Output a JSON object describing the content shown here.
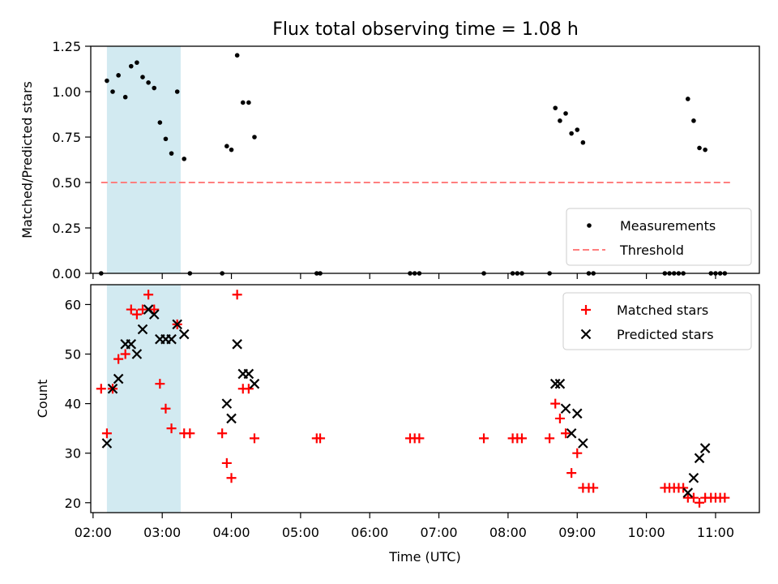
{
  "title": "Flux total observing time = 1.08 h",
  "chart_data": [
    {
      "type": "scatter",
      "ylabel": "Matched/Predicted stars",
      "xlabel": "",
      "xlim": [
        "01:58",
        "11:38"
      ],
      "ylim": [
        0,
        1.25
      ],
      "yticks": [
        0,
        0.25,
        0.5,
        0.75,
        1.0,
        1.25
      ],
      "ytick_labels": [
        "0.00",
        "0.25",
        "0.50",
        "0.75",
        "1.00",
        "1.25"
      ],
      "highlight_span": {
        "x": [
          "02:12",
          "03:16"
        ],
        "color": "#add8e6"
      },
      "legend_position": "lower right",
      "series": [
        {
          "name": "Measurements",
          "marker": "dot",
          "color": "#000000",
          "points": [
            [
              "02:07",
              0.0
            ],
            [
              "02:12",
              1.06
            ],
            [
              "02:17",
              1.0
            ],
            [
              "02:22",
              1.09
            ],
            [
              "02:28",
              0.97
            ],
            [
              "02:33",
              1.14
            ],
            [
              "02:38",
              1.16
            ],
            [
              "02:43",
              1.08
            ],
            [
              "02:48",
              1.05
            ],
            [
              "02:53",
              1.02
            ],
            [
              "02:58",
              0.83
            ],
            [
              "03:03",
              0.74
            ],
            [
              "03:08",
              0.66
            ],
            [
              "03:13",
              1.0
            ],
            [
              "03:19",
              0.63
            ],
            [
              "03:24",
              0.0
            ],
            [
              "03:52",
              0.0
            ],
            [
              "03:56",
              0.7
            ],
            [
              "04:00",
              0.68
            ],
            [
              "04:05",
              1.2
            ],
            [
              "04:10",
              0.94
            ],
            [
              "04:15",
              0.94
            ],
            [
              "04:20",
              0.75
            ],
            [
              "05:14",
              0.0
            ],
            [
              "05:17",
              0.0
            ],
            [
              "06:35",
              0.0
            ],
            [
              "06:39",
              0.0
            ],
            [
              "06:43",
              0.0
            ],
            [
              "07:39",
              0.0
            ],
            [
              "08:04",
              0.0
            ],
            [
              "08:08",
              0.0
            ],
            [
              "08:12",
              0.0
            ],
            [
              "08:36",
              0.0
            ],
            [
              "08:41",
              0.91
            ],
            [
              "08:45",
              0.84
            ],
            [
              "08:50",
              0.88
            ],
            [
              "08:55",
              0.77
            ],
            [
              "09:00",
              0.79
            ],
            [
              "09:05",
              0.72
            ],
            [
              "09:10",
              0.0
            ],
            [
              "09:14",
              0.0
            ],
            [
              "10:16",
              0.0
            ],
            [
              "10:20",
              0.0
            ],
            [
              "10:24",
              0.0
            ],
            [
              "10:28",
              0.0
            ],
            [
              "10:32",
              0.0
            ],
            [
              "10:36",
              0.96
            ],
            [
              "10:41",
              0.84
            ],
            [
              "10:46",
              0.69
            ],
            [
              "10:51",
              0.68
            ],
            [
              "10:56",
              0.0
            ],
            [
              "11:00",
              0.0
            ],
            [
              "11:04",
              0.0
            ],
            [
              "11:08",
              0.0
            ]
          ]
        },
        {
          "name": "Threshold",
          "type": "line",
          "style": "dashed",
          "color": "#ff7f7f",
          "x": [
            "02:07",
            "11:13"
          ],
          "y": [
            0.5,
            0.5
          ]
        }
      ]
    },
    {
      "type": "scatter",
      "ylabel": "Count",
      "xlabel": "Time (UTC)",
      "xlim": [
        "01:58",
        "11:38"
      ],
      "ylim": [
        18,
        64
      ],
      "yticks": [
        20,
        30,
        40,
        50,
        60
      ],
      "ytick_labels": [
        "20",
        "30",
        "40",
        "50",
        "60"
      ],
      "xticks": [
        "02:00",
        "03:00",
        "04:00",
        "05:00",
        "06:00",
        "07:00",
        "08:00",
        "09:00",
        "10:00",
        "11:00"
      ],
      "highlight_span": {
        "x": [
          "02:12",
          "03:16"
        ],
        "color": "#add8e6"
      },
      "legend_position": "upper right",
      "series": [
        {
          "name": "Matched stars",
          "marker": "plus",
          "color": "#ff0000",
          "points": [
            [
              "02:07",
              43
            ],
            [
              "02:12",
              34
            ],
            [
              "02:17",
              43
            ],
            [
              "02:22",
              49
            ],
            [
              "02:28",
              50
            ],
            [
              "02:33",
              59
            ],
            [
              "02:38",
              58
            ],
            [
              "02:43",
              59
            ],
            [
              "02:48",
              62
            ],
            [
              "02:53",
              59
            ],
            [
              "02:58",
              44
            ],
            [
              "03:03",
              39
            ],
            [
              "03:08",
              35
            ],
            [
              "03:13",
              56
            ],
            [
              "03:19",
              34
            ],
            [
              "03:24",
              34
            ],
            [
              "03:52",
              34
            ],
            [
              "03:56",
              28
            ],
            [
              "04:00",
              25
            ],
            [
              "04:05",
              62
            ],
            [
              "04:10",
              43
            ],
            [
              "04:15",
              43
            ],
            [
              "04:20",
              33
            ],
            [
              "05:14",
              33
            ],
            [
              "05:17",
              33
            ],
            [
              "06:35",
              33
            ],
            [
              "06:39",
              33
            ],
            [
              "06:43",
              33
            ],
            [
              "07:39",
              33
            ],
            [
              "08:04",
              33
            ],
            [
              "08:08",
              33
            ],
            [
              "08:12",
              33
            ],
            [
              "08:36",
              33
            ],
            [
              "08:41",
              40
            ],
            [
              "08:45",
              37
            ],
            [
              "08:50",
              34
            ],
            [
              "08:55",
              26
            ],
            [
              "09:00",
              30
            ],
            [
              "09:05",
              23
            ],
            [
              "09:10",
              23
            ],
            [
              "09:14",
              23
            ],
            [
              "10:16",
              23
            ],
            [
              "10:20",
              23
            ],
            [
              "10:24",
              23
            ],
            [
              "10:28",
              23
            ],
            [
              "10:32",
              23
            ],
            [
              "10:36",
              21
            ],
            [
              "10:41",
              21
            ],
            [
              "10:46",
              20
            ],
            [
              "10:51",
              21
            ],
            [
              "10:56",
              21
            ],
            [
              "11:00",
              21
            ],
            [
              "11:04",
              21
            ],
            [
              "11:08",
              21
            ]
          ]
        },
        {
          "name": "Predicted stars",
          "marker": "x",
          "color": "#000000",
          "points": [
            [
              "02:12",
              32
            ],
            [
              "02:17",
              43
            ],
            [
              "02:22",
              45
            ],
            [
              "02:28",
              52
            ],
            [
              "02:33",
              52
            ],
            [
              "02:38",
              50
            ],
            [
              "02:43",
              55
            ],
            [
              "02:48",
              59
            ],
            [
              "02:53",
              58
            ],
            [
              "02:58",
              53
            ],
            [
              "03:03",
              53
            ],
            [
              "03:08",
              53
            ],
            [
              "03:13",
              56
            ],
            [
              "03:19",
              54
            ],
            [
              "03:56",
              40
            ],
            [
              "04:00",
              37
            ],
            [
              "04:05",
              52
            ],
            [
              "04:10",
              46
            ],
            [
              "04:15",
              46
            ],
            [
              "04:20",
              44
            ],
            [
              "08:41",
              44
            ],
            [
              "08:45",
              44
            ],
            [
              "08:50",
              39
            ],
            [
              "08:55",
              34
            ],
            [
              "09:00",
              38
            ],
            [
              "09:05",
              32
            ],
            [
              "10:36",
              22
            ],
            [
              "10:41",
              25
            ],
            [
              "10:46",
              29
            ],
            [
              "10:51",
              31
            ]
          ]
        }
      ]
    }
  ]
}
